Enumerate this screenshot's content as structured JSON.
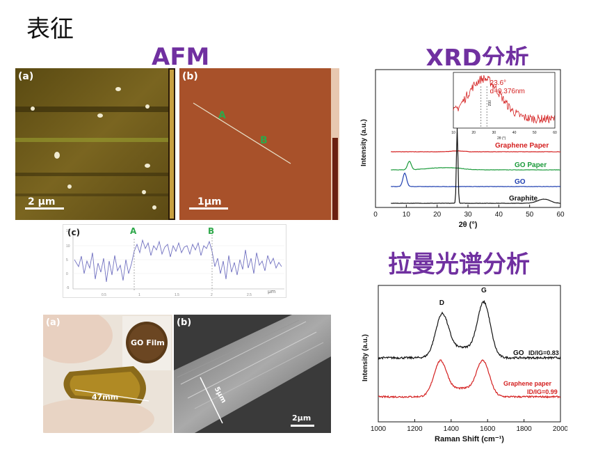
{
  "page": {
    "title": "表征",
    "afm_heading": "AFM",
    "xrd_heading": "XRD分析",
    "raman_heading": "拉曼光谱分析"
  },
  "afm": {
    "panel_a": {
      "label": "(a)",
      "scale": "2 μm"
    },
    "panel_b": {
      "label": "(b)",
      "scale": "1μm",
      "point_a": "A",
      "point_b": "B"
    },
    "panel_c": {
      "label": "(c)",
      "point_a": "A",
      "point_b": "B",
      "x_unit": "μm"
    }
  },
  "film": {
    "panel_a": {
      "label": "(a)",
      "inset_label": "GO Film",
      "dimension": "47mm"
    },
    "panel_b": {
      "label": "(b)",
      "thickness": "5μm",
      "scale": "2μm"
    }
  },
  "colors": {
    "purple": "#7030a0",
    "red": "#d42020",
    "green": "#1a9a3a",
    "blue": "#1f3fb0",
    "black": "#111111"
  },
  "chart_data": [
    {
      "type": "line",
      "ylabel": "Intensity (a.u.)",
      "xlabel": "2θ (°)",
      "xlim": [
        0,
        60
      ],
      "xticks": [
        "0",
        "10",
        "20",
        "30",
        "40",
        "50",
        "60"
      ],
      "peak_label": "002",
      "series": [
        {
          "name": "Graphene Paper",
          "color": "#d42020",
          "peaks": [
            {
              "x": 26.5,
              "y": 0.1
            }
          ]
        },
        {
          "name": "GO Paper",
          "color": "#1a9a3a",
          "peaks": [
            {
              "x": 11.0,
              "y": 1.0
            },
            {
              "x": 26.5,
              "y": 0.05
            }
          ]
        },
        {
          "name": "GO",
          "color": "#1f3fb0",
          "peaks": [
            {
              "x": 9.5,
              "y": 1.6
            }
          ]
        },
        {
          "name": "Graphite",
          "color": "#111111",
          "peaks": [
            {
              "x": 26.5,
              "y": 9.0
            },
            {
              "x": 54.6,
              "y": 0.5
            }
          ]
        }
      ],
      "inset": {
        "annotation_angle": "23.6°",
        "annotation_d": "d=0.376nm",
        "xlabel": "2θ (°)",
        "xticks": [
          "10",
          "20",
          "30",
          "40",
          "50",
          "60"
        ],
        "peak_label": "002",
        "color": "#d42020"
      }
    },
    {
      "type": "line",
      "ylabel": "Intensity (a.u.)",
      "xlabel": "Raman Shift (cm⁻¹)",
      "xlim": [
        1000,
        2000
      ],
      "xticks": [
        "1000",
        "1200",
        "1400",
        "1600",
        "1800",
        "2000"
      ],
      "peak_labels": [
        "D",
        "G"
      ],
      "series": [
        {
          "name": "GO",
          "ratio": "ID/IG=0.83",
          "color": "#111111",
          "peaks": [
            {
              "x": 1350,
              "y": 1.0
            },
            {
              "x": 1580,
              "y": 1.3
            }
          ]
        },
        {
          "name": "Graphene paper",
          "ratio": "ID/IG=0.99",
          "color": "#d42020",
          "peaks": [
            {
              "x": 1340,
              "y": 1.0
            },
            {
              "x": 1575,
              "y": 1.0
            }
          ]
        }
      ]
    }
  ]
}
